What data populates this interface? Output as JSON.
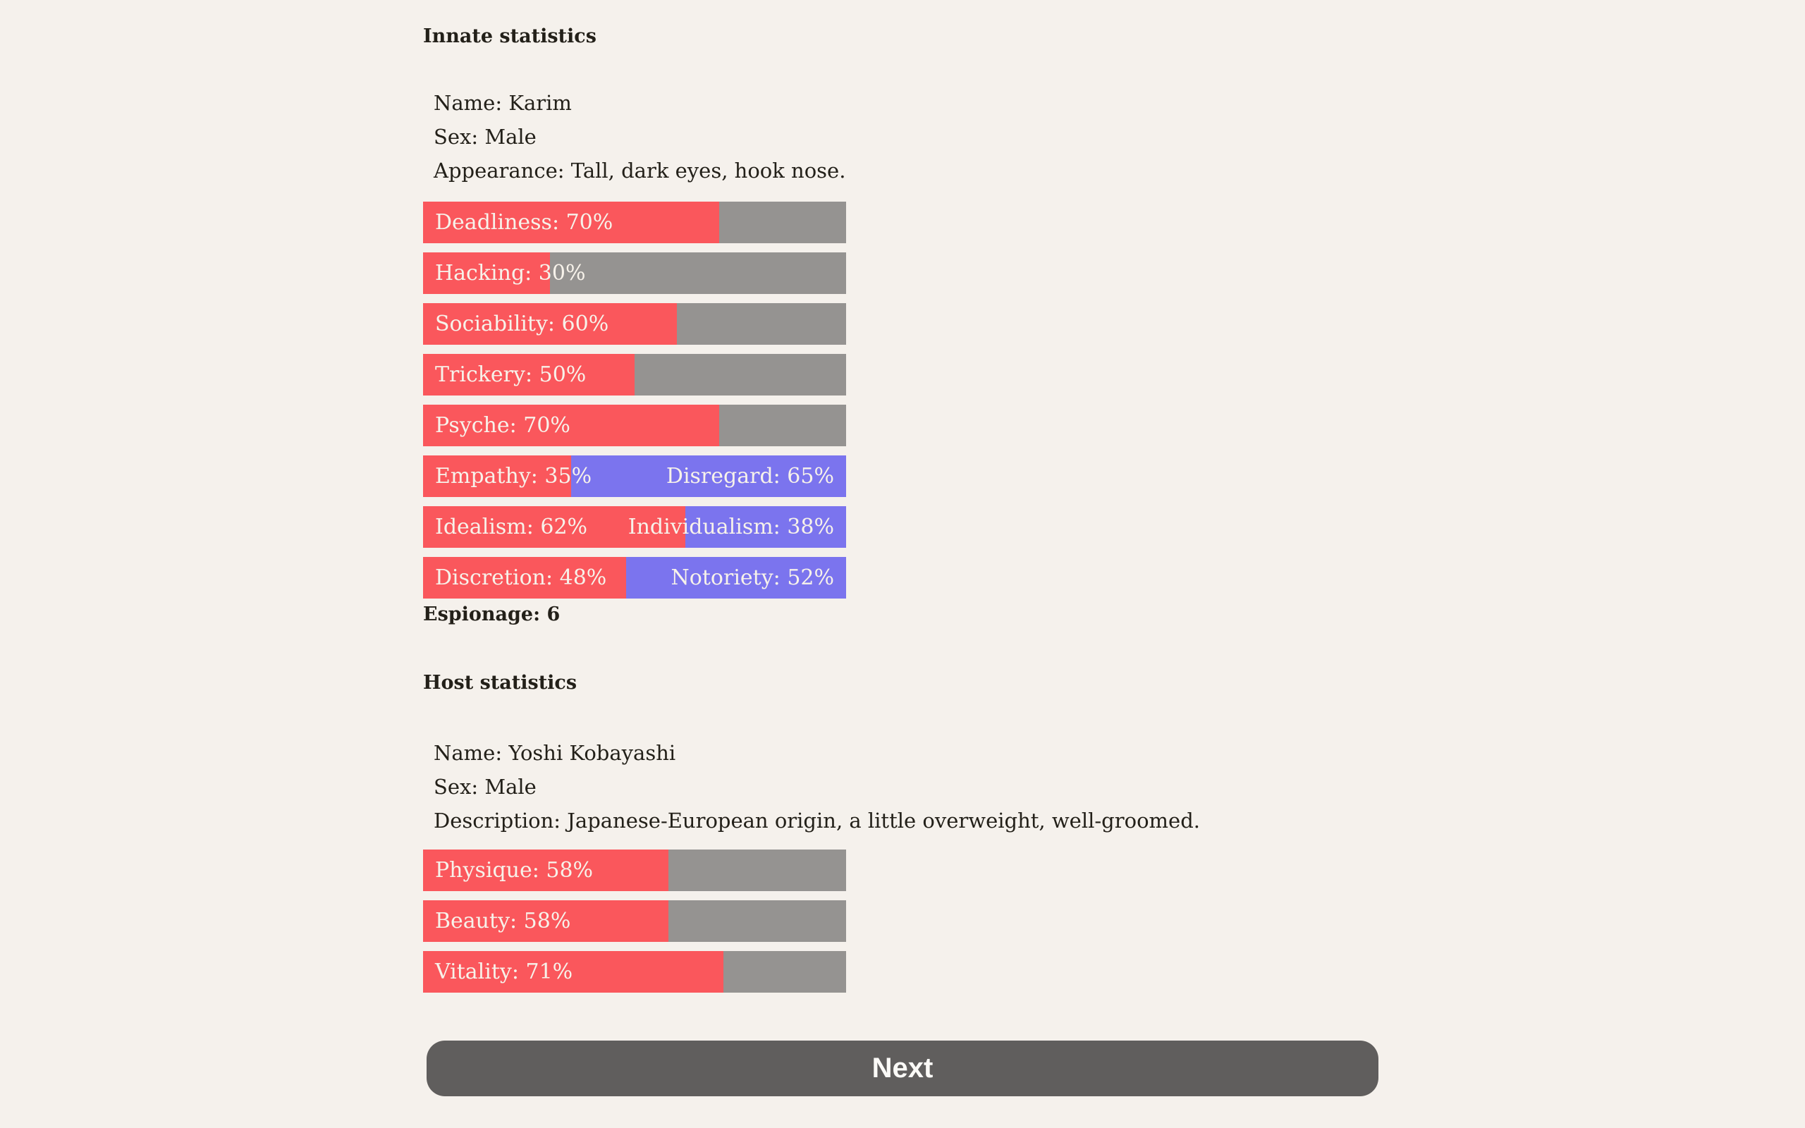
{
  "page": {
    "background": "#f5f1ec",
    "text_color": "#232019"
  },
  "colors": {
    "bar_fill_red": "#fa575c",
    "bar_rest_gray": "#959391",
    "bar_opposed_blue": "#7b74ee",
    "bar_label_text": "#f7f2ea",
    "button_bg": "#605e5d",
    "button_text": "#fbfaf7"
  },
  "innate": {
    "heading": "Innate statistics",
    "lines": [
      "Name: Karim",
      "Sex: Male",
      "Appearance: Tall, dark eyes, hook nose."
    ],
    "bars": [
      {
        "label": "Deadliness: 70%",
        "value": 70,
        "opposed": false
      },
      {
        "label": "Hacking: 30%",
        "value": 30,
        "opposed": false
      },
      {
        "label": "Sociability: 60%",
        "value": 60,
        "opposed": false
      },
      {
        "label": "Trickery: 50%",
        "value": 50,
        "opposed": false
      },
      {
        "label": "Psyche: 70%",
        "value": 70,
        "opposed": false
      },
      {
        "label": "Empathy: 35%",
        "value": 35,
        "opposed": true,
        "opposed_label": "Disregard: 65%"
      },
      {
        "label": "Idealism: 62%",
        "value": 62,
        "opposed": true,
        "opposed_label": "Individualism: 38%"
      },
      {
        "label": "Discretion: 48%",
        "value": 48,
        "opposed": true,
        "opposed_label": "Notoriety: 52%"
      }
    ],
    "espionage_heading": "Espionage: 6"
  },
  "host": {
    "heading": "Host statistics",
    "lines": [
      "Name: Yoshi Kobayashi",
      "Sex: Male",
      "Description: Japanese-European origin, a little overweight, well-groomed."
    ],
    "bars": [
      {
        "label": "Physique: 58%",
        "value": 58,
        "opposed": false
      },
      {
        "label": "Beauty: 58%",
        "value": 58,
        "opposed": false
      },
      {
        "label": "Vitality: 71%",
        "value": 71,
        "opposed": false
      }
    ]
  },
  "next_button": {
    "label": "Next"
  }
}
